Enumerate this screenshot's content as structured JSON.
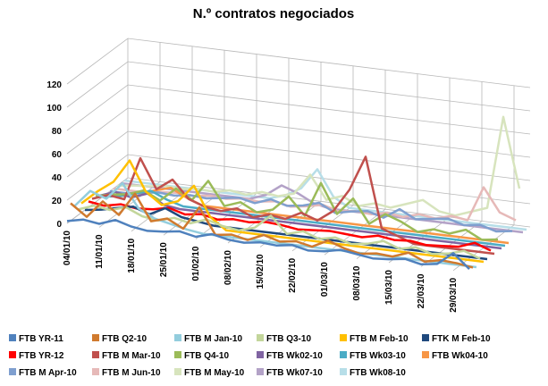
{
  "chart_data": {
    "type": "line",
    "title": "N.º contratos negociados",
    "categories": [
      "04/01/10",
      null,
      "11/01/10",
      null,
      "18/01/10",
      null,
      "25/01/10",
      null,
      "01/02/10",
      null,
      "08/02/10",
      null,
      "15/02/10",
      null,
      "22/02/10",
      null,
      "01/03/10",
      null,
      "08/03/10",
      null,
      "15/03/10",
      null,
      "22/03/10",
      null,
      "29/03/10",
      null
    ],
    "ylim": [
      0,
      120
    ],
    "yticks": [
      0,
      20,
      40,
      60,
      80,
      100,
      120
    ],
    "grid": true,
    "series": [
      {
        "name": "FTB YR-11",
        "color": "#4f81bd",
        "values": [
          2,
          5,
          3,
          8,
          4,
          2,
          3,
          5,
          2,
          6,
          3,
          2,
          4,
          3,
          5,
          2,
          3,
          6,
          4,
          2,
          3,
          5,
          2,
          4,
          15,
          3
        ]
      },
      {
        "name": "FTB Q2-10",
        "color": "#d07a2e",
        "values": [
          15,
          5,
          20,
          10,
          30,
          8,
          12,
          5,
          25,
          3,
          5,
          2,
          8,
          4,
          6,
          3,
          10,
          5,
          2,
          4,
          3,
          8,
          2,
          5,
          4,
          2
        ]
      },
      {
        "name": "FTB M Jan-10",
        "color": "#93cddd",
        "values": [
          10,
          25,
          20,
          35,
          15,
          8,
          5,
          2,
          0,
          0,
          0,
          0,
          0,
          0,
          0,
          0,
          0,
          0,
          0,
          0,
          0,
          0,
          0,
          0,
          0,
          0
        ]
      },
      {
        "name": "FTB Q3-10",
        "color": "#c3d69b",
        "values": [
          5,
          10,
          8,
          12,
          6,
          4,
          8,
          5,
          10,
          6,
          4,
          8,
          20,
          6,
          10,
          5,
          8,
          4,
          6,
          10,
          5,
          8,
          4,
          6,
          10,
          5
        ]
      },
      {
        "name": "FTB M Feb-10",
        "color": "#ffc000",
        "values": [
          8,
          20,
          30,
          50,
          25,
          15,
          20,
          35,
          10,
          0,
          0,
          0,
          0,
          0,
          0,
          0,
          0,
          0,
          0,
          0,
          0,
          0,
          0,
          0,
          0,
          0
        ]
      },
      {
        "name": "FTK M Feb-10",
        "color": "#1f497d",
        "values": [
          0,
          2,
          5,
          8,
          3,
          10,
          4,
          2,
          0,
          0,
          0,
          0,
          0,
          0,
          0,
          0,
          0,
          0,
          0,
          0,
          0,
          0,
          0,
          0,
          0,
          0
        ]
      },
      {
        "name": "FTB YR-12",
        "color": "#ff0000",
        "values": [
          5,
          3,
          6,
          4,
          5,
          8,
          4,
          6,
          3,
          5,
          4,
          6,
          5,
          3,
          4,
          5,
          4,
          3,
          6,
          4,
          5,
          3,
          4,
          5,
          10,
          5
        ]
      },
      {
        "name": "FTB M Mar-10",
        "color": "#c0504d",
        "values": [
          5,
          10,
          8,
          45,
          20,
          30,
          15,
          10,
          8,
          12,
          6,
          10,
          8,
          15,
          10,
          20,
          40,
          70,
          10,
          5,
          0,
          0,
          0,
          0,
          0,
          0
        ]
      },
      {
        "name": "FTB Q4-10",
        "color": "#9bbb59",
        "values": [
          5,
          8,
          10,
          15,
          8,
          20,
          12,
          30,
          10,
          15,
          8,
          12,
          25,
          10,
          40,
          15,
          30,
          10,
          20,
          15,
          8,
          12,
          10,
          15,
          8,
          10
        ]
      },
      {
        "name": "FTB Wk02-10",
        "color": "#8064a2",
        "values": [
          3,
          8,
          5,
          10,
          2,
          0,
          0,
          0,
          0,
          0,
          0,
          0,
          0,
          0,
          0,
          0,
          0,
          0,
          0,
          0,
          0,
          0,
          0,
          0,
          0,
          0
        ]
      },
      {
        "name": "FTB Wk03-10",
        "color": "#4bacc6",
        "values": [
          0,
          2,
          6,
          10,
          4,
          0,
          0,
          0,
          0,
          0,
          0,
          0,
          0,
          0,
          0,
          0,
          0,
          0,
          0,
          0,
          0,
          0,
          0,
          0,
          0,
          0
        ]
      },
      {
        "name": "FTB Wk04-10",
        "color": "#f79646",
        "values": [
          0,
          0,
          4,
          8,
          12,
          5,
          0,
          0,
          0,
          0,
          0,
          0,
          0,
          0,
          0,
          0,
          0,
          0,
          0,
          0,
          0,
          0,
          0,
          0,
          0,
          0
        ]
      },
      {
        "name": "FTB M Apr-10",
        "color": "#7f9fcf",
        "values": [
          0,
          0,
          2,
          4,
          3,
          5,
          4,
          6,
          8,
          5,
          10,
          6,
          8,
          12,
          5,
          8,
          10,
          6,
          15,
          8,
          10,
          12,
          8,
          10,
          6,
          8
        ]
      },
      {
        "name": "FTB M Jun-10",
        "color": "#e6b9b8",
        "values": [
          0,
          0,
          0,
          2,
          3,
          2,
          4,
          3,
          5,
          4,
          6,
          3,
          5,
          8,
          4,
          6,
          5,
          8,
          6,
          10,
          8,
          12,
          10,
          40,
          20,
          15
        ]
      },
      {
        "name": "FTB M May-10",
        "color": "#d7e4bd",
        "values": [
          0,
          2,
          3,
          5,
          4,
          6,
          5,
          8,
          6,
          10,
          8,
          12,
          30,
          10,
          15,
          8,
          12,
          10,
          15,
          20,
          12,
          10,
          15,
          20,
          100,
          40
        ]
      },
      {
        "name": "FTB Wk07-10",
        "color": "#b3a2c7",
        "values": [
          0,
          0,
          0,
          0,
          0,
          0,
          0,
          0,
          0,
          5,
          15,
          10,
          3,
          0,
          0,
          0,
          0,
          0,
          0,
          0,
          0,
          0,
          0,
          0,
          0,
          0
        ]
      },
      {
        "name": "FTB Wk08-10",
        "color": "#b7dee8",
        "values": [
          0,
          0,
          0,
          0,
          0,
          0,
          0,
          0,
          0,
          0,
          4,
          12,
          30,
          8,
          0,
          0,
          0,
          0,
          0,
          0,
          0,
          0,
          0,
          0,
          0,
          0
        ]
      }
    ]
  }
}
